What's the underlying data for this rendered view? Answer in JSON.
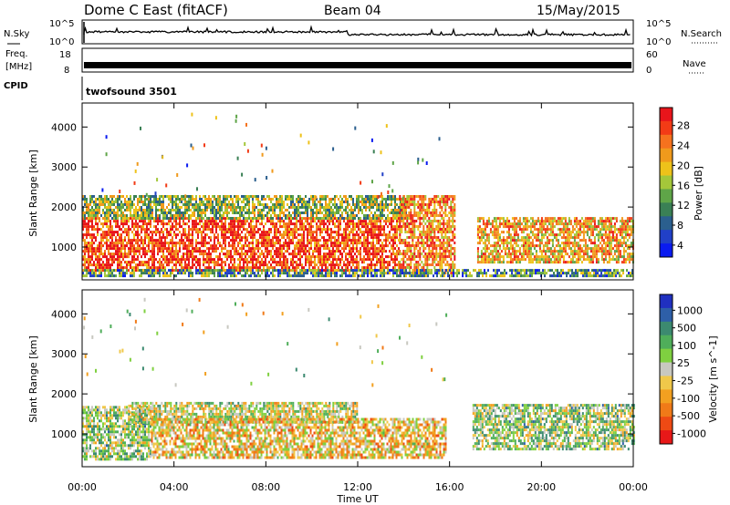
{
  "header": {
    "station": "Dome C East (fitACF)",
    "beam": "Beam 04",
    "date": "15/May/2015"
  },
  "top_panels": {
    "nsky_label": "N.Sky",
    "nsky_ticks": [
      "10^5",
      "10^0"
    ],
    "nsearch_label": "N.Search",
    "freq_label": "Freq.",
    "freq_unit": "[MHz]",
    "freq_ticks": [
      "18",
      "8"
    ],
    "nave_label": "Nave",
    "nave_ticks": [
      "60",
      "0"
    ],
    "cpid_label": "CPID",
    "cpid_value": "twofsound 3501"
  },
  "chart_data": [
    {
      "type": "heatmap",
      "title": "",
      "xlabel": "Time UT",
      "ylabel": "Slant Range [km]",
      "x_ticks": [
        "00:00",
        "04:00",
        "08:00",
        "12:00",
        "16:00",
        "20:00",
        "00:00"
      ],
      "x_range_hours": [
        0,
        24
      ],
      "ylim": [
        180,
        4600
      ],
      "y_ticks": [
        1000,
        2000,
        3000,
        4000
      ],
      "colorbar": {
        "label": "Power [dB]",
        "ticks": [
          "28",
          "24",
          "20",
          "16",
          "12",
          "8",
          "4"
        ],
        "colors": [
          "#e8151b",
          "#f23b16",
          "#f5721e",
          "#f09a1c",
          "#eec21a",
          "#a4c73a",
          "#5fa548",
          "#3a8055",
          "#2b5f8e",
          "#2140c7",
          "#0a1bf0"
        ],
        "range": [
          0,
          30
        ]
      },
      "echo_regions": [
        {
          "t0": 0.0,
          "t1": 13.8,
          "r0": 450,
          "r1": 1750,
          "level": 26
        },
        {
          "t0": 0.0,
          "t1": 14.2,
          "r0": 1750,
          "r1": 2300,
          "level": 14
        },
        {
          "t0": 13.8,
          "t1": 16.2,
          "r0": 350,
          "r1": 2300,
          "level": 22
        },
        {
          "t0": 17.2,
          "t1": 24.0,
          "r0": 600,
          "r1": 1750,
          "level": 20
        },
        {
          "t0": 0.0,
          "t1": 24.0,
          "r0": 250,
          "r1": 450,
          "level": 10
        }
      ]
    },
    {
      "type": "heatmap",
      "title": "",
      "xlabel": "Time UT",
      "ylabel": "Slant Range [km]",
      "x_ticks": [
        "00:00",
        "04:00",
        "08:00",
        "12:00",
        "16:00",
        "20:00",
        "00:00"
      ],
      "x_range_hours": [
        0,
        24
      ],
      "ylim": [
        180,
        4600
      ],
      "y_ticks": [
        1000,
        2000,
        3000,
        4000
      ],
      "colorbar": {
        "label": "Velocity [m s^-1]",
        "ticks": [
          "1000",
          "500",
          "100",
          "25",
          "-25",
          "-100",
          "-500",
          "-1000"
        ],
        "colors": [
          "#2030c0",
          "#2e5fa8",
          "#3c8a70",
          "#4fae5a",
          "#7fd040",
          "#c8c8c0",
          "#f0c84a",
          "#f2a020",
          "#f07a18",
          "#ee4a14",
          "#e81818"
        ],
        "range": [
          -1000,
          1000
        ]
      },
      "echo_regions": [
        {
          "t0": 0.0,
          "t1": 3.0,
          "r0": 400,
          "r1": 1700,
          "level": 150
        },
        {
          "t0": 2.0,
          "t1": 12.0,
          "r0": 1300,
          "r1": 1800,
          "level": 0
        },
        {
          "t0": 3.0,
          "t1": 15.8,
          "r0": 400,
          "r1": 1400,
          "level": -200
        },
        {
          "t0": 17.0,
          "t1": 24.0,
          "r0": 600,
          "r1": 1750,
          "level": 150
        }
      ]
    }
  ]
}
